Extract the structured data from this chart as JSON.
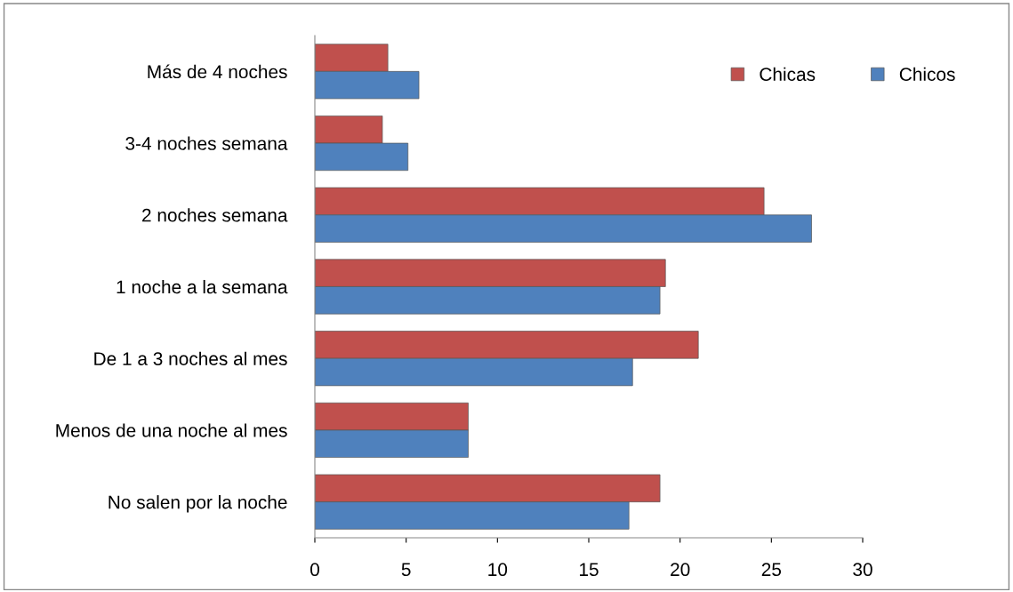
{
  "chart_data": {
    "type": "bar",
    "orientation": "horizontal",
    "categories": [
      "Más de 4 noches",
      "3-4 noches semana",
      "2 noches semana",
      "1 noche a la semana",
      "De 1 a 3 noches al mes",
      "Menos de una noche al mes",
      "No salen por la noche"
    ],
    "series": [
      {
        "name": "Chicas",
        "color": "#c0504d",
        "values": [
          4.0,
          3.7,
          24.6,
          19.2,
          21.0,
          8.4,
          18.9
        ]
      },
      {
        "name": "Chicos",
        "color": "#4f81bd",
        "values": [
          5.7,
          5.1,
          27.2,
          18.9,
          17.4,
          8.4,
          17.2
        ]
      }
    ],
    "xlim": [
      0,
      30
    ],
    "xticks": [
      0,
      5,
      10,
      15,
      20,
      25,
      30
    ],
    "grid": false,
    "legend": "top right"
  }
}
